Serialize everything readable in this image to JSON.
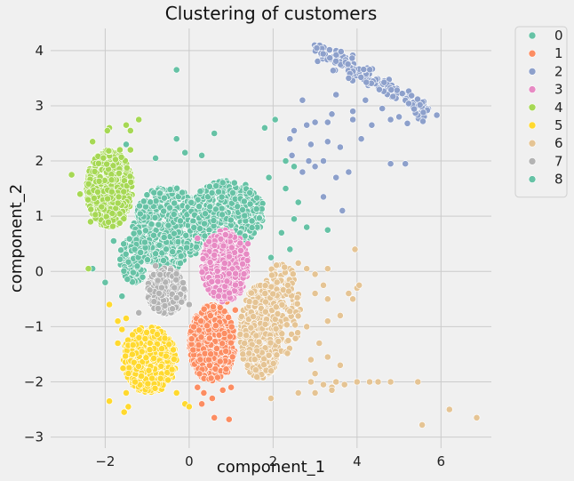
{
  "chart_data": {
    "type": "scatter",
    "title": "Clustering of customers",
    "xlabel": "component_1",
    "ylabel": "component_2",
    "xlim": [
      -3.3,
      7.2
    ],
    "ylim": [
      -3.2,
      4.4
    ],
    "xticks": [
      -2,
      0,
      2,
      4,
      6
    ],
    "yticks": [
      -3,
      -2,
      -1,
      0,
      1,
      2,
      3,
      4
    ],
    "grid": true,
    "legend_position": "outside-top-right",
    "series": [
      {
        "name": "0",
        "color": "#66c2a5",
        "clusters": [
          {
            "shape": "ellipse",
            "cx": -0.5,
            "cy": 0.8,
            "rx": 0.85,
            "ry": 0.75,
            "count": 550
          },
          {
            "shape": "ellipse",
            "cx": 0.9,
            "cy": 1.05,
            "rx": 0.9,
            "ry": 0.6,
            "count": 420
          },
          {
            "shape": "ellipse",
            "cx": -1.3,
            "cy": 0.25,
            "rx": 0.35,
            "ry": 0.45,
            "count": 120
          }
        ],
        "points": [
          [
            -0.3,
            3.65
          ],
          [
            -0.3,
            2.4
          ],
          [
            0.6,
            2.5
          ],
          [
            -0.1,
            2.15
          ],
          [
            0.3,
            2.1
          ],
          [
            1.8,
            2.6
          ],
          [
            2.05,
            2.75
          ],
          [
            2.3,
            2.0
          ],
          [
            2.5,
            1.9
          ],
          [
            1.9,
            1.7
          ],
          [
            2.3,
            1.5
          ],
          [
            2.6,
            1.25
          ],
          [
            2.5,
            0.95
          ],
          [
            2.8,
            0.8
          ],
          [
            3.3,
            0.75
          ],
          [
            2.2,
            0.7
          ],
          [
            2.4,
            0.4
          ],
          [
            1.95,
            0.25
          ],
          [
            -1.5,
            2.3
          ],
          [
            -0.8,
            2.05
          ],
          [
            -2.0,
            -0.2
          ],
          [
            -1.6,
            -0.45
          ],
          [
            -2.3,
            0.05
          ],
          [
            -1.8,
            0.55
          ]
        ]
      },
      {
        "name": "1",
        "color": "#fc8d62",
        "clusters": [
          {
            "shape": "ellipse",
            "cx": 0.55,
            "cy": -1.3,
            "rx": 0.55,
            "ry": 0.7,
            "count": 550
          }
        ],
        "points": [
          [
            0.6,
            -2.65
          ],
          [
            0.95,
            -2.68
          ],
          [
            0.55,
            -2.3
          ],
          [
            0.35,
            -2.2
          ],
          [
            0.8,
            -2.15
          ],
          [
            1.0,
            -2.1
          ],
          [
            0.2,
            -2.1
          ],
          [
            1.1,
            -0.7
          ],
          [
            0.9,
            -0.55
          ],
          [
            0.3,
            -2.4
          ]
        ]
      },
      {
        "name": "2",
        "color": "#8da0cb",
        "clusters": [
          {
            "shape": "band",
            "x0": 3.0,
            "y0": 4.05,
            "x1": 5.7,
            "y1": 2.9,
            "spread": 0.1,
            "count": 160
          }
        ],
        "points": [
          [
            5.9,
            2.83
          ],
          [
            5.2,
            2.68
          ],
          [
            4.8,
            2.75
          ],
          [
            4.2,
            3.1
          ],
          [
            3.9,
            2.9
          ],
          [
            4.35,
            2.65
          ],
          [
            3.5,
            3.2
          ],
          [
            3.8,
            3.5
          ],
          [
            3.4,
            2.85
          ],
          [
            3.3,
            2.7
          ],
          [
            2.7,
            3.1
          ],
          [
            2.8,
            2.65
          ],
          [
            3.0,
            2.7
          ],
          [
            2.5,
            2.55
          ],
          [
            2.4,
            2.4
          ],
          [
            2.9,
            2.3
          ],
          [
            3.3,
            2.35
          ],
          [
            3.6,
            2.25
          ],
          [
            2.85,
            2.0
          ],
          [
            3.2,
            2.0
          ],
          [
            3.0,
            1.9
          ],
          [
            3.5,
            1.7
          ],
          [
            2.7,
            1.8
          ],
          [
            3.8,
            1.8
          ],
          [
            4.1,
            2.4
          ],
          [
            4.8,
            1.95
          ],
          [
            5.15,
            1.95
          ],
          [
            3.2,
            1.35
          ],
          [
            3.65,
            1.1
          ],
          [
            2.45,
            2.1
          ],
          [
            3.9,
            2.75
          ],
          [
            4.6,
            2.95
          ],
          [
            5.0,
            2.8
          ]
        ]
      },
      {
        "name": "3",
        "color": "#e78ac3",
        "clusters": [
          {
            "shape": "ellipse",
            "cx": 0.85,
            "cy": 0.1,
            "rx": 0.55,
            "ry": 0.65,
            "count": 500
          }
        ],
        "points": [
          [
            1.6,
            -0.5
          ],
          [
            0.2,
            0.6
          ],
          [
            1.4,
            0.5
          ]
        ]
      },
      {
        "name": "4",
        "color": "#a6d854",
        "clusters": [
          {
            "shape": "ellipse",
            "cx": -1.9,
            "cy": 1.5,
            "rx": 0.55,
            "ry": 0.7,
            "count": 650
          }
        ],
        "points": [
          [
            -1.9,
            2.6
          ],
          [
            -1.95,
            2.55
          ],
          [
            -1.5,
            2.65
          ],
          [
            -1.4,
            2.55
          ],
          [
            -2.3,
            2.35
          ],
          [
            -2.8,
            1.75
          ],
          [
            -2.6,
            1.4
          ],
          [
            -2.35,
            0.9
          ],
          [
            -1.65,
            2.2
          ],
          [
            -1.2,
            2.75
          ],
          [
            -1.4,
            2.2
          ],
          [
            -2.4,
            0.05
          ]
        ]
      },
      {
        "name": "5",
        "color": "#ffd92f",
        "clusters": [
          {
            "shape": "ellipse",
            "cx": -0.95,
            "cy": -1.6,
            "rx": 0.65,
            "ry": 0.6,
            "count": 600
          }
        ],
        "points": [
          [
            -1.9,
            -2.35
          ],
          [
            -1.55,
            -2.55
          ],
          [
            -1.45,
            -2.45
          ],
          [
            -1.9,
            -0.6
          ],
          [
            -1.6,
            -1.05
          ],
          [
            -1.7,
            -1.3
          ],
          [
            -0.1,
            -2.4
          ],
          [
            0.0,
            -2.45
          ],
          [
            -1.5,
            -0.85
          ],
          [
            -1.7,
            -0.9
          ],
          [
            -1.5,
            -2.2
          ],
          [
            -0.3,
            -2.2
          ]
        ]
      },
      {
        "name": "6",
        "color": "#e5c494",
        "clusters": [
          {
            "shape": "ellipse",
            "cx": 1.7,
            "cy": -1.1,
            "rx": 0.5,
            "ry": 0.85,
            "count": 420
          },
          {
            "shape": "ellipse",
            "cx": 2.2,
            "cy": -0.7,
            "rx": 0.45,
            "ry": 0.9,
            "count": 140
          }
        ],
        "points": [
          [
            6.85,
            -2.65
          ],
          [
            6.2,
            -2.5
          ],
          [
            5.55,
            -2.78
          ],
          [
            5.45,
            -2.0
          ],
          [
            4.8,
            -2.0
          ],
          [
            4.5,
            -2.0
          ],
          [
            4.3,
            -2.0
          ],
          [
            4.0,
            -2.0
          ],
          [
            3.7,
            -2.05
          ],
          [
            3.5,
            -2.0
          ],
          [
            3.4,
            -2.1
          ],
          [
            3.2,
            -2.05
          ],
          [
            3.0,
            -1.85
          ],
          [
            3.4,
            -2.15
          ],
          [
            3.0,
            -2.2
          ],
          [
            2.9,
            -1.6
          ],
          [
            3.3,
            -1.55
          ],
          [
            3.6,
            -1.7
          ],
          [
            3.3,
            -0.9
          ],
          [
            3.8,
            -0.4
          ],
          [
            3.9,
            -0.5
          ],
          [
            4.0,
            -0.3
          ],
          [
            3.6,
            -0.8
          ],
          [
            3.3,
            -0.5
          ],
          [
            3.2,
            -0.25
          ],
          [
            3.0,
            -0.05
          ],
          [
            3.3,
            0.05
          ],
          [
            2.6,
            0.15
          ],
          [
            2.8,
            0.05
          ],
          [
            3.95,
            0.4
          ],
          [
            4.05,
            -0.25
          ],
          [
            3.0,
            -0.4
          ],
          [
            2.8,
            -1.0
          ],
          [
            2.6,
            -2.2
          ],
          [
            1.95,
            -2.3
          ],
          [
            2.9,
            -2.0
          ],
          [
            3.1,
            -1.3
          ]
        ]
      },
      {
        "name": "7",
        "color": "#b3b3b3",
        "clusters": [
          {
            "shape": "ellipse",
            "cx": -0.55,
            "cy": -0.35,
            "rx": 0.45,
            "ry": 0.42,
            "count": 330
          }
        ],
        "points": [
          [
            -1.2,
            -0.75
          ],
          [
            0.0,
            -0.6
          ],
          [
            -0.8,
            0.1
          ]
        ]
      },
      {
        "name": "8",
        "color": "#66c2a5",
        "clusters": [],
        "points": []
      }
    ]
  }
}
